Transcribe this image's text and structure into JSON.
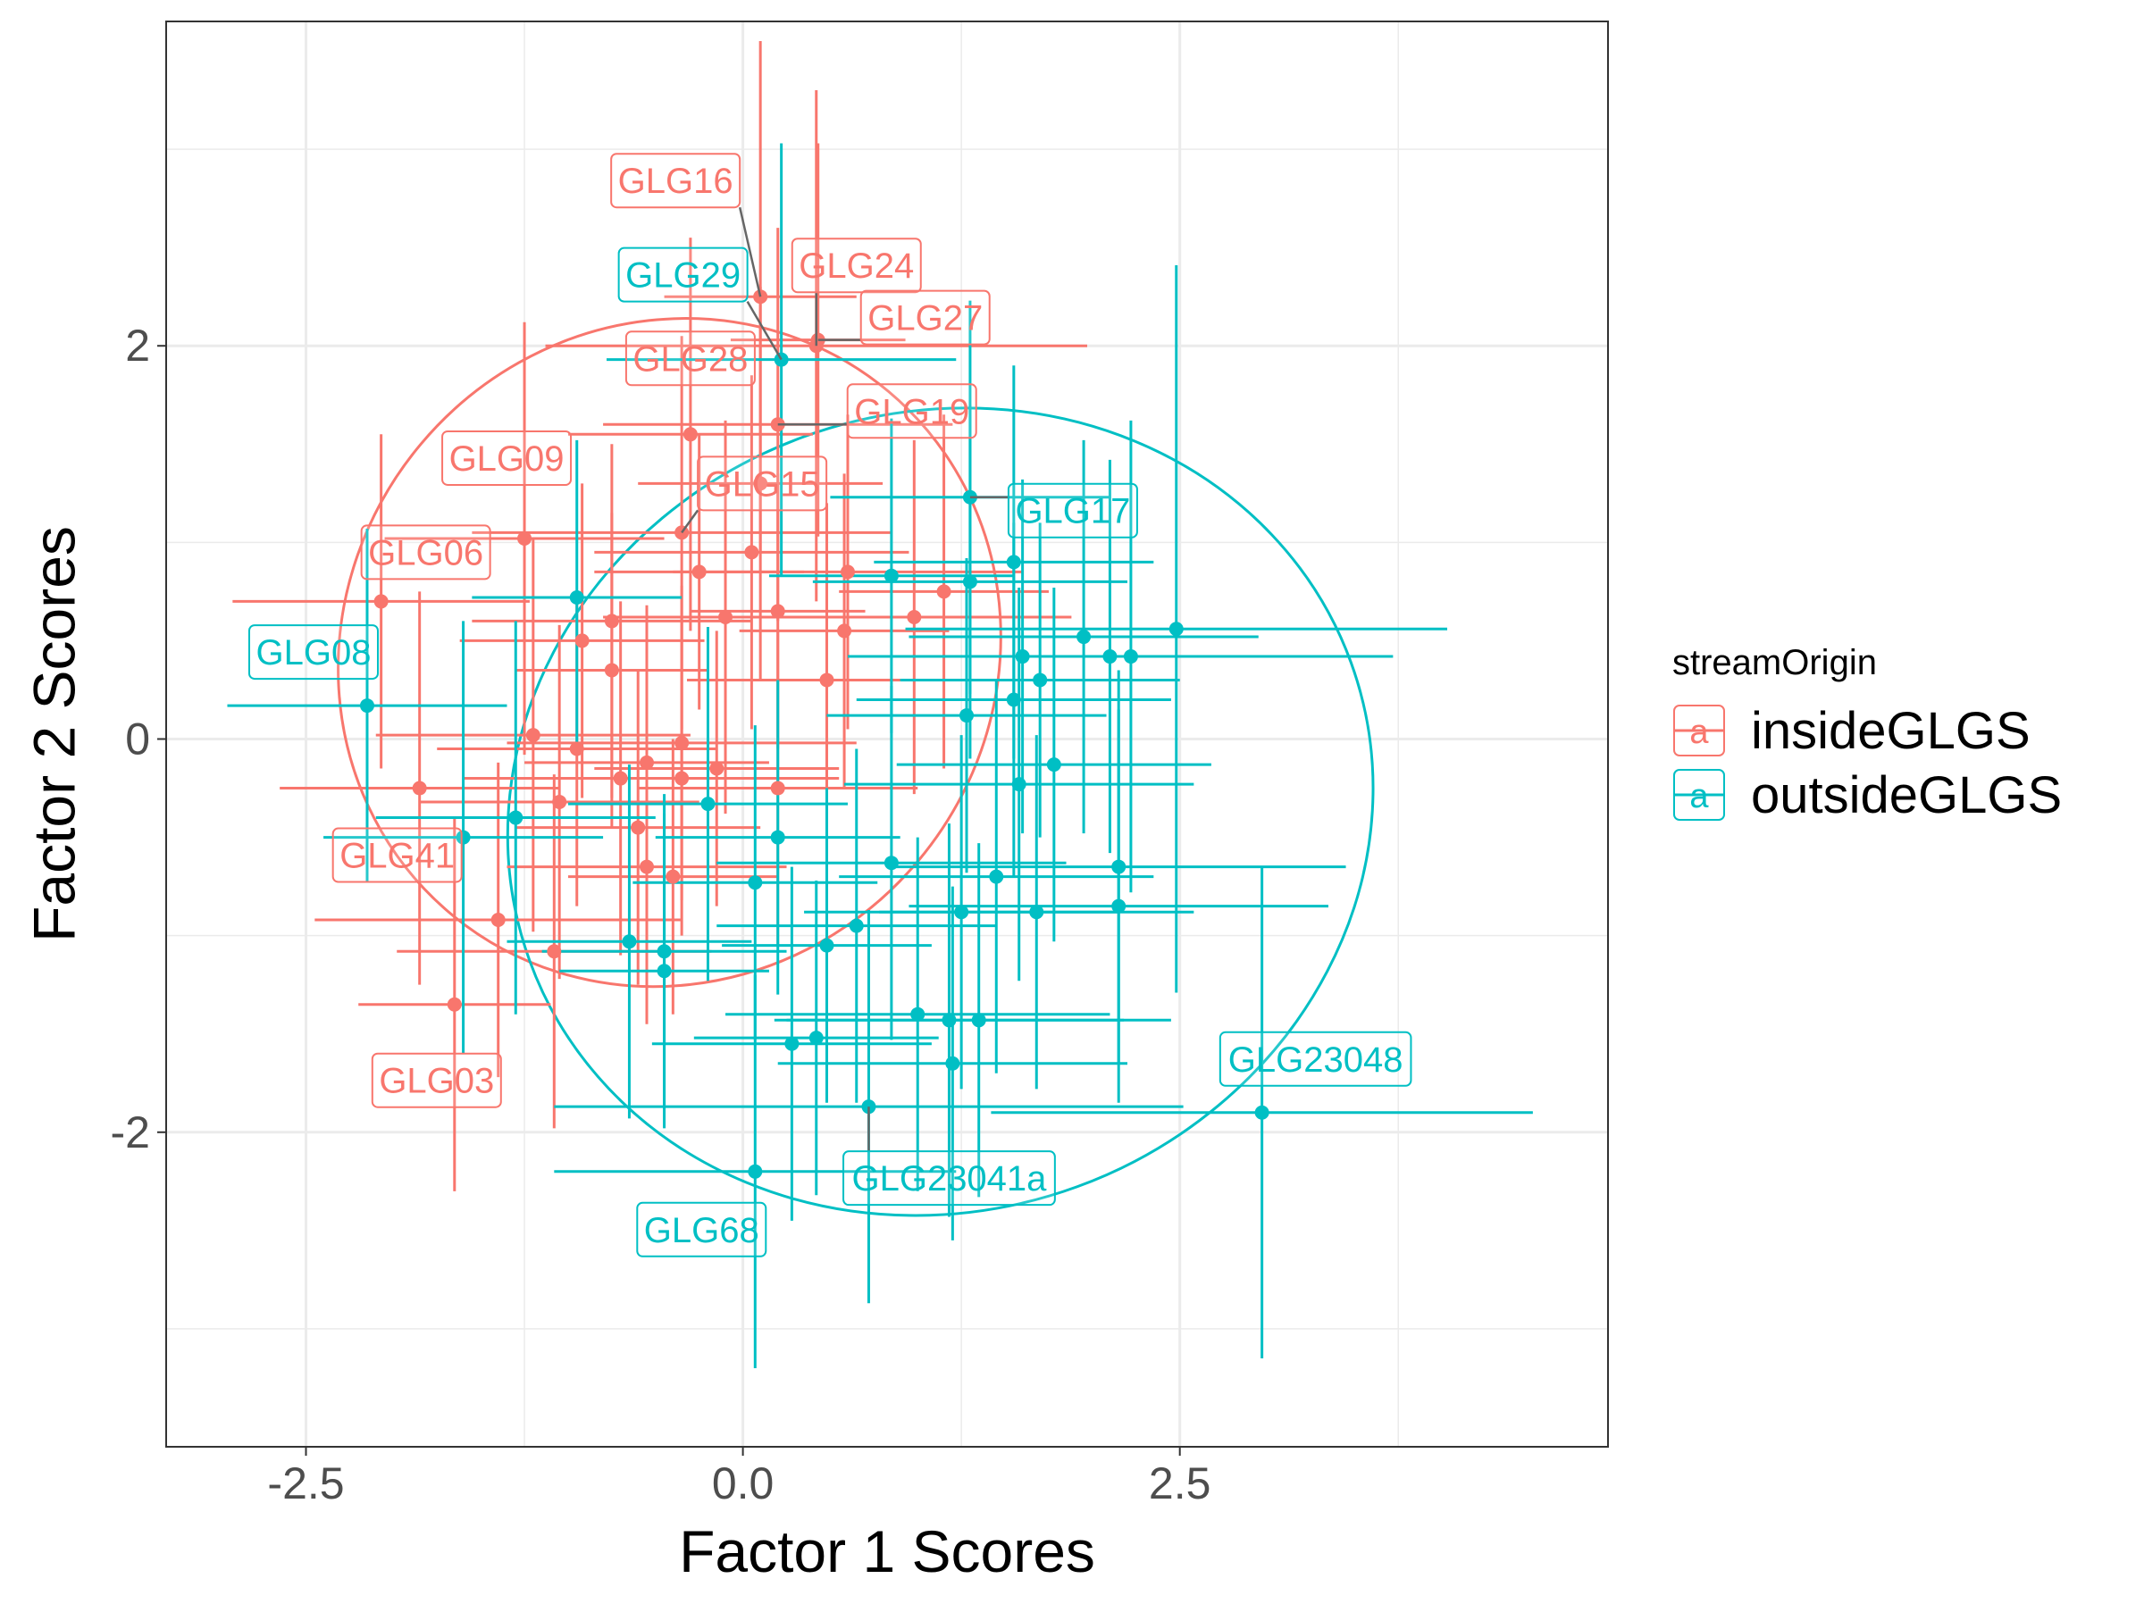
{
  "chart_data": {
    "type": "scatter",
    "xlabel": "Factor 1 Scores",
    "ylabel": "Factor 2 Scores",
    "xlim": [
      -3.3,
      4.95
    ],
    "ylim": [
      -3.6,
      3.65
    ],
    "x_ticks": [
      -2.5,
      0.0,
      2.5
    ],
    "x_tick_labels": [
      "-2.5",
      "0.0",
      "2.5"
    ],
    "y_ticks": [
      -2,
      0,
      2
    ],
    "y_tick_labels": [
      "-2",
      "0",
      "2"
    ],
    "grid": true,
    "legend": {
      "title": "streamOrigin",
      "position": "right",
      "key_glyph": "a"
    },
    "series": [
      {
        "name": "insideGLGS",
        "color": "#F8766D",
        "points": [
          {
            "x": 0.1,
            "y": 2.25,
            "xerr": 0.55,
            "yerr": 1.3,
            "label": "GLG16"
          },
          {
            "x": 0.42,
            "y": 2.0,
            "xerr": 1.55,
            "yerr": 1.3,
            "label": "GLG24"
          },
          {
            "x": 0.43,
            "y": 2.03,
            "xerr": 0.5,
            "yerr": 1.0,
            "label": "GLG27"
          },
          {
            "x": -0.3,
            "y": 1.55,
            "xerr": 0.7,
            "yerr": 1.0,
            "label": "GLG28"
          },
          {
            "x": 0.2,
            "y": 1.6,
            "xerr": 1.0,
            "yerr": 1.0,
            "label": "GLG19"
          },
          {
            "x": -1.25,
            "y": 1.02,
            "xerr": 0.8,
            "yerr": 1.1,
            "label": "GLG09"
          },
          {
            "x": -0.35,
            "y": 1.05,
            "xerr": 1.2,
            "yerr": 1.0,
            "label": "GLG15"
          },
          {
            "x": -2.07,
            "y": 0.7,
            "xerr": 0.85,
            "yerr": 0.85,
            "label": "GLG06"
          },
          {
            "x": -1.85,
            "y": -0.25,
            "xerr": 0.8,
            "yerr": 1.0,
            "label": "GLG41"
          },
          {
            "x": -1.65,
            "y": -1.35,
            "xerr": 0.55,
            "yerr": 0.95,
            "label": "GLG03"
          },
          {
            "x": 0.05,
            "y": 0.95,
            "xerr": 0.9,
            "yerr": 0.9
          },
          {
            "x": -0.25,
            "y": 0.85,
            "xerr": 0.6,
            "yerr": 0.7
          },
          {
            "x": 0.6,
            "y": 0.85,
            "xerr": 1.0,
            "yerr": 0.8
          },
          {
            "x": 0.98,
            "y": 0.62,
            "xerr": 0.9,
            "yerr": 0.9
          },
          {
            "x": -0.75,
            "y": 0.6,
            "xerr": 0.8,
            "yerr": 0.9
          },
          {
            "x": -0.1,
            "y": 0.62,
            "xerr": 0.7,
            "yerr": 1.0
          },
          {
            "x": 0.2,
            "y": 0.65,
            "xerr": 0.5,
            "yerr": 0.7
          },
          {
            "x": 0.58,
            "y": 0.55,
            "xerr": 0.6,
            "yerr": 0.8
          },
          {
            "x": -0.92,
            "y": 0.5,
            "xerr": 0.7,
            "yerr": 0.8
          },
          {
            "x": -0.75,
            "y": 0.35,
            "xerr": 0.55,
            "yerr": 0.8
          },
          {
            "x": 0.48,
            "y": 0.3,
            "xerr": 0.8,
            "yerr": 0.9
          },
          {
            "x": -1.2,
            "y": 0.02,
            "xerr": 0.9,
            "yerr": 1.0
          },
          {
            "x": -0.95,
            "y": -0.05,
            "xerr": 0.8,
            "yerr": 0.8
          },
          {
            "x": -0.35,
            "y": -0.02,
            "xerr": 1.0,
            "yerr": 0.8
          },
          {
            "x": -0.55,
            "y": -0.12,
            "xerr": 0.7,
            "yerr": 0.8
          },
          {
            "x": -0.15,
            "y": -0.15,
            "xerr": 0.7,
            "yerr": 0.7
          },
          {
            "x": -0.7,
            "y": -0.2,
            "xerr": 0.9,
            "yerr": 0.9
          },
          {
            "x": -0.35,
            "y": -0.2,
            "xerr": 0.9,
            "yerr": 0.8
          },
          {
            "x": 0.2,
            "y": -0.25,
            "xerr": 0.8,
            "yerr": 0.8
          },
          {
            "x": -1.05,
            "y": -0.32,
            "xerr": 0.8,
            "yerr": 0.9
          },
          {
            "x": -0.6,
            "y": -0.45,
            "xerr": 0.7,
            "yerr": 0.8
          },
          {
            "x": -0.55,
            "y": -0.65,
            "xerr": 0.8,
            "yerr": 0.8
          },
          {
            "x": -0.4,
            "y": -0.7,
            "xerr": 0.6,
            "yerr": 0.7
          },
          {
            "x": -1.4,
            "y": -0.92,
            "xerr": 1.05,
            "yerr": 0.8
          },
          {
            "x": -1.08,
            "y": -1.08,
            "xerr": 0.9,
            "yerr": 0.9
          },
          {
            "x": 1.15,
            "y": 0.75,
            "xerr": 0.6,
            "yerr": 0.9
          },
          {
            "x": 0.1,
            "y": 1.3,
            "xerr": 0.7,
            "yerr": 1.0
          }
        ]
      },
      {
        "name": "outsideGLGS",
        "color": "#00BFC4",
        "points": [
          {
            "x": 0.22,
            "y": 1.93,
            "xerr": 1.0,
            "yerr": 1.1,
            "label": "GLG29"
          },
          {
            "x": 1.3,
            "y": 1.23,
            "xerr": 0.8,
            "yerr": 1.0,
            "label": "GLG17"
          },
          {
            "x": -2.15,
            "y": 0.17,
            "xerr": 0.8,
            "yerr": 0.9,
            "label": "GLG08"
          },
          {
            "x": 2.97,
            "y": -1.9,
            "xerr": 1.55,
            "yerr": 1.25,
            "label": "GLG23048"
          },
          {
            "x": 0.72,
            "y": -1.87,
            "xerr": 1.8,
            "yerr": 1.0,
            "label": "GLG23041a"
          },
          {
            "x": 0.07,
            "y": -2.2,
            "xerr": 1.15,
            "yerr": 1.0,
            "label": "GLG68"
          },
          {
            "x": 1.55,
            "y": 0.9,
            "xerr": 0.8,
            "yerr": 1.0
          },
          {
            "x": 1.3,
            "y": 0.8,
            "xerr": 0.9,
            "yerr": 0.9
          },
          {
            "x": 0.85,
            "y": 0.83,
            "xerr": 0.7,
            "yerr": 0.8
          },
          {
            "x": 2.48,
            "y": 0.56,
            "xerr": 1.55,
            "yerr": 1.85
          },
          {
            "x": 1.95,
            "y": 0.52,
            "xerr": 1.0,
            "yerr": 1.0
          },
          {
            "x": 2.1,
            "y": 0.42,
            "xerr": 0.7,
            "yerr": 1.0
          },
          {
            "x": 2.22,
            "y": 0.42,
            "xerr": 1.5,
            "yerr": 1.2
          },
          {
            "x": 1.6,
            "y": 0.42,
            "xerr": 1.0,
            "yerr": 0.9
          },
          {
            "x": 1.7,
            "y": 0.3,
            "xerr": 0.8,
            "yerr": 0.8
          },
          {
            "x": 1.55,
            "y": 0.2,
            "xerr": 0.9,
            "yerr": 0.9
          },
          {
            "x": 1.28,
            "y": 0.12,
            "xerr": 0.8,
            "yerr": 0.8
          },
          {
            "x": 1.78,
            "y": -0.13,
            "xerr": 0.9,
            "yerr": 0.9
          },
          {
            "x": 1.58,
            "y": -0.23,
            "xerr": 1.0,
            "yerr": 1.0
          },
          {
            "x": -1.3,
            "y": -0.4,
            "xerr": 0.8,
            "yerr": 1.0
          },
          {
            "x": -1.6,
            "y": -0.5,
            "xerr": 0.8,
            "yerr": 1.1
          },
          {
            "x": -0.2,
            "y": -0.33,
            "xerr": 0.8,
            "yerr": 0.9
          },
          {
            "x": 0.2,
            "y": -0.5,
            "xerr": 0.7,
            "yerr": 0.8
          },
          {
            "x": 2.15,
            "y": -0.65,
            "xerr": 1.3,
            "yerr": 1.0
          },
          {
            "x": 1.45,
            "y": -0.7,
            "xerr": 0.9,
            "yerr": 1.0
          },
          {
            "x": 0.85,
            "y": -0.63,
            "xerr": 1.0,
            "yerr": 0.9
          },
          {
            "x": 0.07,
            "y": -0.73,
            "xerr": 0.7,
            "yerr": 0.8
          },
          {
            "x": 2.15,
            "y": -0.85,
            "xerr": 1.2,
            "yerr": 1.0
          },
          {
            "x": 1.68,
            "y": -0.88,
            "xerr": 0.9,
            "yerr": 0.9
          },
          {
            "x": 1.25,
            "y": -0.88,
            "xerr": 0.9,
            "yerr": 0.9
          },
          {
            "x": 0.65,
            "y": -0.95,
            "xerr": 0.8,
            "yerr": 0.9
          },
          {
            "x": -0.65,
            "y": -1.03,
            "xerr": 0.7,
            "yerr": 0.9
          },
          {
            "x": 0.48,
            "y": -1.05,
            "xerr": 0.6,
            "yerr": 0.8
          },
          {
            "x": -0.45,
            "y": -1.08,
            "xerr": 0.7,
            "yerr": 0.8
          },
          {
            "x": -0.45,
            "y": -1.18,
            "xerr": 0.6,
            "yerr": 0.8
          },
          {
            "x": 1.35,
            "y": -1.43,
            "xerr": 1.1,
            "yerr": 0.9
          },
          {
            "x": 1.18,
            "y": -1.43,
            "xerr": 1.0,
            "yerr": 1.0
          },
          {
            "x": 1.0,
            "y": -1.4,
            "xerr": 1.1,
            "yerr": 0.9
          },
          {
            "x": 0.42,
            "y": -1.52,
            "xerr": 0.7,
            "yerr": 0.8
          },
          {
            "x": 0.28,
            "y": -1.55,
            "xerr": 0.8,
            "yerr": 0.9
          },
          {
            "x": 1.2,
            "y": -1.65,
            "xerr": 1.0,
            "yerr": 0.9
          },
          {
            "x": -0.95,
            "y": 0.72,
            "xerr": 0.6,
            "yerr": 0.8
          }
        ]
      }
    ],
    "ellipses": [
      {
        "series": "insideGLGS",
        "cx": -0.42,
        "cy": 0.44,
        "rx": 1.95,
        "ry": 1.65,
        "angle_deg": 50
      },
      {
        "series": "outsideGLGS",
        "cx": 1.13,
        "cy": -0.37,
        "rx": 2.5,
        "ry": 2.03,
        "angle_deg": 20
      }
    ]
  }
}
